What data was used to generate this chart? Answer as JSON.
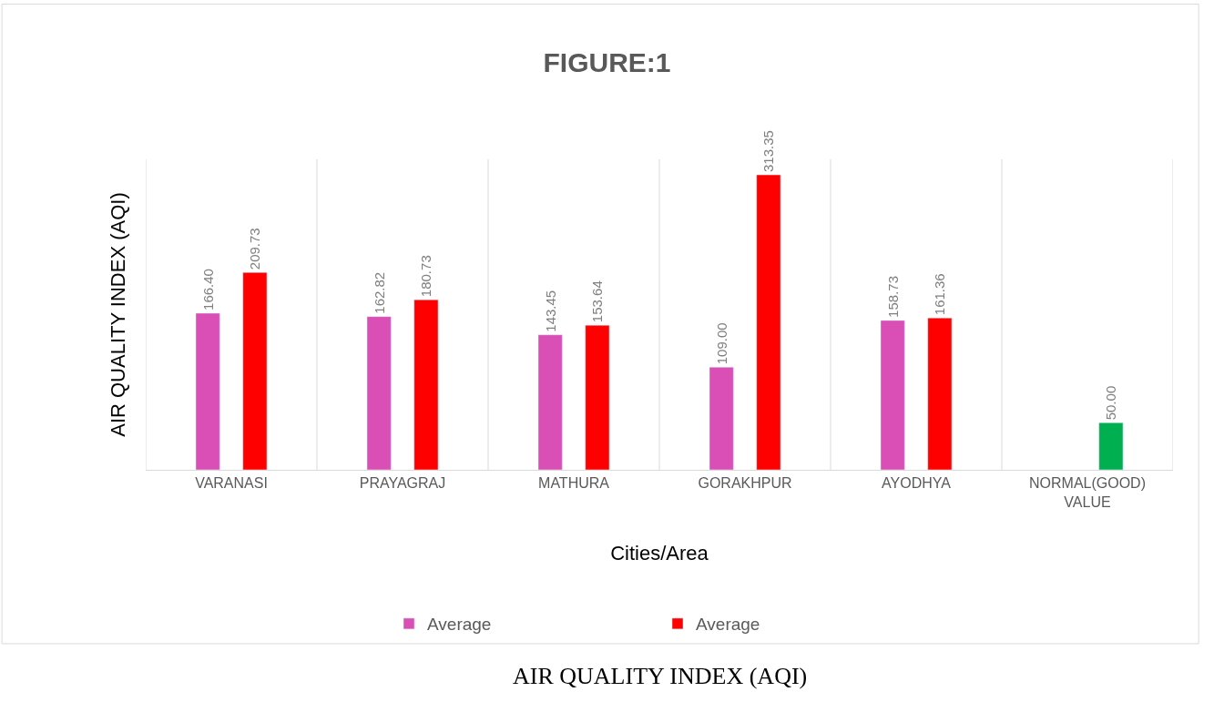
{
  "chart_data": {
    "type": "bar",
    "title": "FIGURE:1",
    "xlabel": "Cities/Area",
    "ylabel": "AIR QUALITY INDEX (AQI)",
    "categories": [
      "VARANASI",
      "PRAYAGRAJ",
      "MATHURA",
      "GORAKHPUR",
      "AYODHYA",
      "NORMAL(GOOD) VALUE"
    ],
    "series": [
      {
        "name": "Average",
        "color": "#d94fb5",
        "values": [
          166.4,
          162.82,
          143.45,
          109.0,
          158.73,
          null
        ],
        "value_labels": [
          "166.40",
          "162.82",
          "143.45",
          "109.00",
          "158.73",
          null
        ]
      },
      {
        "name": "Average",
        "color": "#ff0000",
        "colors": [
          "#ff0000",
          "#ff0000",
          "#ff0000",
          "#ff0000",
          "#ff0000",
          "#00b050"
        ],
        "values": [
          209.73,
          180.73,
          153.64,
          313.35,
          161.36,
          50.0
        ],
        "value_labels": [
          "209.73",
          "180.73",
          "153.64",
          "313.35",
          "161.36",
          "50.00"
        ]
      }
    ],
    "tick_labels": "x",
    "legend": "bottom",
    "annotations": [
      "AIR QUALITY INDEX (AQI)"
    ]
  }
}
